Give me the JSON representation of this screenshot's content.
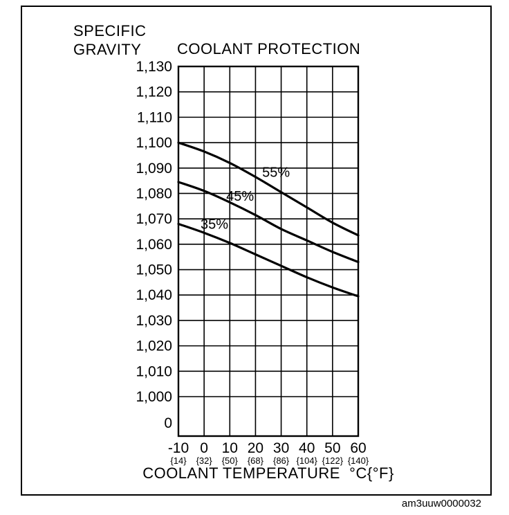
{
  "figure": {
    "code": "am3uuw0000032"
  },
  "chart_data": {
    "type": "line",
    "title": "COOLANT PROTECTION",
    "ylabel_lines": [
      "SPECIFIC",
      "GRAVITY"
    ],
    "xlabel": "COOLANT TEMPERATURE  °C{°F}",
    "grid": true,
    "legend": "none (inline series labels)",
    "xlim": [
      -10,
      60
    ],
    "ylim": [
      1.0,
      1.13
    ],
    "y_tick_step": 0.01,
    "y_ticks": [
      "1,130",
      "1,120",
      "1,110",
      "1,100",
      "1,090",
      "1,080",
      "1,070",
      "1,060",
      "1,050",
      "1,040",
      "1,030",
      "1,020",
      "1,010",
      "1,000"
    ],
    "y_origin_label": "0",
    "x_ticks": [
      {
        "c": "-10",
        "f": "{14}",
        "value": -10
      },
      {
        "c": "0",
        "f": "{32}",
        "value": 0
      },
      {
        "c": "10",
        "f": "{50}",
        "value": 10
      },
      {
        "c": "20",
        "f": "{68}",
        "value": 20
      },
      {
        "c": "30",
        "f": "{86}",
        "value": 30
      },
      {
        "c": "40",
        "f": "{104}",
        "value": 40
      },
      {
        "c": "50",
        "f": "{122}",
        "value": 50
      },
      {
        "c": "60",
        "f": "{140}",
        "value": 60
      }
    ],
    "x": [
      -10,
      0,
      10,
      20,
      30,
      40,
      50,
      60
    ],
    "series": [
      {
        "name": "55%",
        "values": [
          1.1,
          1.0965,
          1.092,
          1.0865,
          1.0805,
          1.0745,
          1.0685,
          1.0635
        ],
        "label_pos": {
          "x": 28,
          "y": 1.0885
        }
      },
      {
        "name": "45%",
        "values": [
          1.0845,
          1.081,
          1.0765,
          1.0715,
          1.066,
          1.0615,
          1.057,
          1.053
        ],
        "label_pos": {
          "x": 14,
          "y": 1.079
        }
      },
      {
        "name": "35%",
        "values": [
          1.068,
          1.0645,
          1.0605,
          1.056,
          1.0515,
          1.047,
          1.043,
          1.0395
        ],
        "label_pos": {
          "x": 4,
          "y": 1.068
        }
      }
    ]
  }
}
